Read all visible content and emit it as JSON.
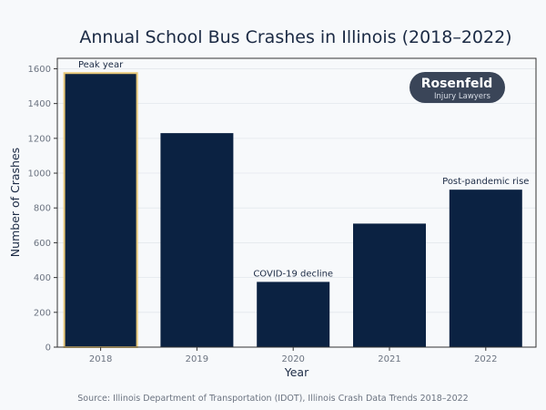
{
  "chart_data": {
    "type": "bar",
    "title": "Annual School Bus Crashes in Illinois (2018–2022)",
    "xlabel": "Year",
    "ylabel": "Number of Crashes",
    "categories": [
      "2018",
      "2019",
      "2020",
      "2021",
      "2022"
    ],
    "values": [
      1575,
      1230,
      375,
      710,
      905
    ],
    "ylim": [
      0,
      1660
    ],
    "yticks": [
      0,
      200,
      400,
      600,
      800,
      1000,
      1200,
      1400,
      1600
    ],
    "grid": true,
    "annotations": [
      {
        "category": "2018",
        "text": "Peak year"
      },
      {
        "category": "2020",
        "text": "COVID-19 decline"
      },
      {
        "category": "2022",
        "text": "Post-pandemic rise"
      }
    ],
    "highlight": {
      "category": "2018",
      "edge_color": "#e8c879"
    },
    "bar_color": "#0b2242",
    "source": "Source: Illinois Department of Transportation (IDOT), Illinois Crash Data Trends 2018–2022"
  },
  "logo": {
    "name": "Rosenfeld",
    "tagline": "Injury Lawyers"
  }
}
